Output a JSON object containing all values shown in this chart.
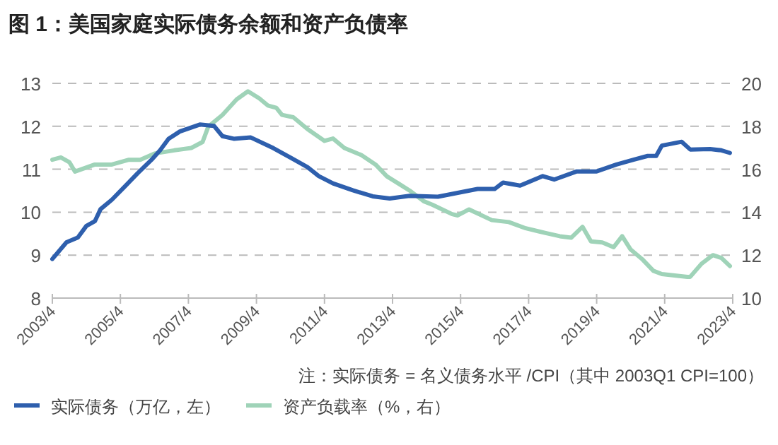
{
  "chart_data": {
    "type": "line",
    "title": "图 1：美国家庭实际债务余额和资产负债率",
    "annotations": [
      "注：实际债务 = 名义债务水平 /CPI（其中 2003Q1 CPI=100）"
    ],
    "xlim": [
      "2003-04",
      "2023-04"
    ],
    "xticks": [
      {
        "value": "2003-04",
        "label": "2003/4"
      },
      {
        "value": "2005-04",
        "label": "2005/4"
      },
      {
        "value": "2007-04",
        "label": "2007/4"
      },
      {
        "value": "2009-04",
        "label": "2009/4"
      },
      {
        "value": "2011-04",
        "label": "2011/4"
      },
      {
        "value": "2013-04",
        "label": "2013/4"
      },
      {
        "value": "2015-04",
        "label": "2015/4"
      },
      {
        "value": "2017-04",
        "label": "2017/4"
      },
      {
        "value": "2019-04",
        "label": "2019/4"
      },
      {
        "value": "2021-04",
        "label": "2021/4"
      },
      {
        "value": "2023-04",
        "label": "2023/4"
      }
    ],
    "ylim": [
      8,
      13
    ],
    "yticks": [
      8,
      9,
      10,
      11,
      12,
      13
    ],
    "y2lim": [
      10,
      20
    ],
    "y2ticks": [
      10,
      12,
      14,
      16,
      18,
      20
    ],
    "grid": "y",
    "legend": "bottom",
    "series": [
      {
        "name": "实际债务（万亿，左）",
        "color": "#2e5fad",
        "x": [
          "2003-04",
          "2003-09",
          "2004-01",
          "2004-04",
          "2004-07",
          "2004-09",
          "2005-01",
          "2005-05",
          "2005-10",
          "2006-03",
          "2006-06",
          "2006-09",
          "2007-01",
          "2007-08",
          "2008-01",
          "2008-04",
          "2008-08",
          "2009-02",
          "2009-10",
          "2010-04",
          "2010-10",
          "2011-02",
          "2011-07",
          "2012-02",
          "2012-09",
          "2013-03",
          "2013-10",
          "2014-08",
          "2015-03",
          "2015-10",
          "2016-04",
          "2016-07",
          "2017-01",
          "2017-09",
          "2018-01",
          "2018-09",
          "2019-04",
          "2019-11",
          "2020-05",
          "2020-10",
          "2021-01",
          "2021-03",
          "2021-10",
          "2022-01",
          "2022-08",
          "2022-12",
          "2023-03"
        ],
        "values": [
          8.91,
          9.3,
          9.41,
          9.68,
          9.79,
          10.07,
          10.29,
          10.56,
          10.9,
          11.22,
          11.44,
          11.71,
          11.88,
          12.04,
          12.01,
          11.77,
          11.71,
          11.74,
          11.49,
          11.27,
          11.05,
          10.84,
          10.67,
          10.51,
          10.37,
          10.32,
          10.38,
          10.36,
          10.45,
          10.54,
          10.54,
          10.69,
          10.62,
          10.84,
          10.76,
          10.95,
          10.95,
          11.11,
          11.22,
          11.31,
          11.31,
          11.55,
          11.64,
          11.46,
          11.47,
          11.44,
          11.38
        ]
      },
      {
        "name": "资产负载率（%，右）",
        "color": "#9fd3b8",
        "axis": "y2",
        "x": [
          "2003-04",
          "2003-07",
          "2003-10",
          "2003-12",
          "2004-07",
          "2005-01",
          "2005-07",
          "2005-11",
          "2006-04",
          "2006-11",
          "2007-05",
          "2007-09",
          "2007-11",
          "2008-04",
          "2008-09",
          "2009-01",
          "2009-05",
          "2009-08",
          "2009-11",
          "2010-01",
          "2010-05",
          "2010-10",
          "2011-04",
          "2011-07",
          "2011-11",
          "2012-05",
          "2012-10",
          "2013-02",
          "2013-06",
          "2013-10",
          "2014-03",
          "2014-06",
          "2015-01",
          "2015-03",
          "2015-07",
          "2016-03",
          "2016-09",
          "2017-03",
          "2017-10",
          "2018-03",
          "2018-07",
          "2018-11",
          "2019-02",
          "2019-06",
          "2019-10",
          "2020-01",
          "2020-04",
          "2020-08",
          "2020-12",
          "2021-03",
          "2021-12",
          "2022-01",
          "2022-05",
          "2022-09",
          "2022-12",
          "2023-03"
        ],
        "values": [
          16.44,
          16.55,
          16.33,
          15.89,
          16.22,
          16.22,
          16.44,
          16.44,
          16.73,
          16.88,
          16.99,
          17.27,
          17.98,
          18.53,
          19.25,
          19.63,
          19.3,
          18.97,
          18.86,
          18.53,
          18.42,
          17.87,
          17.32,
          17.43,
          16.99,
          16.66,
          16.22,
          15.67,
          15.34,
          15.01,
          14.51,
          14.35,
          13.91,
          13.85,
          14.13,
          13.63,
          13.54,
          13.25,
          13.03,
          12.88,
          12.81,
          13.32,
          12.64,
          12.59,
          12.37,
          12.88,
          12.26,
          11.82,
          11.27,
          11.12,
          10.99,
          10.99,
          11.6,
          12.0,
          11.87,
          11.49
        ]
      }
    ]
  }
}
